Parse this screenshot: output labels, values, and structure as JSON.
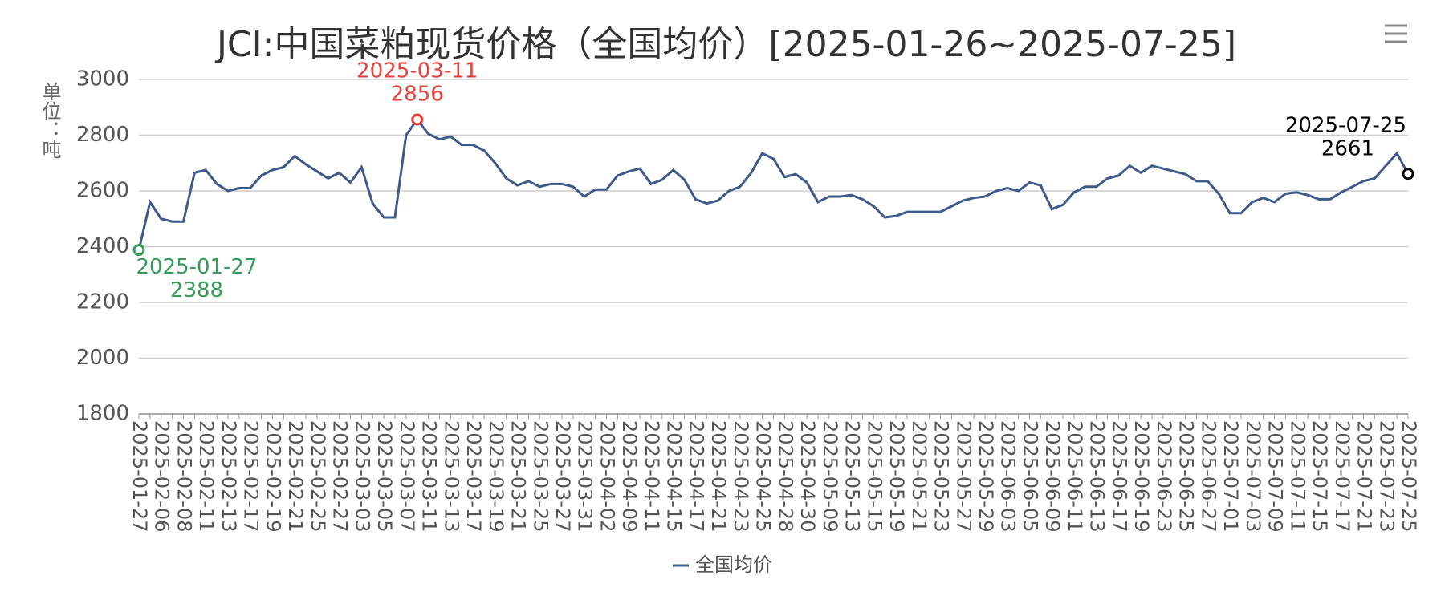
{
  "chart_data": {
    "type": "line",
    "title": "JCI:中国菜粕现货价格（全国均价）[2025-01-26~2025-07-25]",
    "y_label": "单位：吨",
    "categories": [
      "2025-01-27",
      null,
      "2025-02-06",
      null,
      "2025-02-08",
      null,
      "2025-02-11",
      null,
      "2025-02-13",
      null,
      "2025-02-17",
      null,
      "2025-02-19",
      null,
      "2025-02-21",
      null,
      "2025-02-25",
      null,
      "2025-02-27",
      null,
      "2025-03-03",
      null,
      "2025-03-05",
      null,
      "2025-03-07",
      null,
      "2025-03-11",
      null,
      "2025-03-13",
      null,
      "2025-03-17",
      null,
      "2025-03-19",
      null,
      "2025-03-21",
      null,
      "2025-03-25",
      null,
      "2025-03-27",
      null,
      "2025-03-31",
      null,
      "2025-04-02",
      null,
      "2025-04-09",
      null,
      "2025-04-11",
      null,
      "2025-04-15",
      null,
      "2025-04-17",
      null,
      "2025-04-21",
      null,
      "2025-04-23",
      null,
      "2025-04-25",
      null,
      "2025-04-28",
      null,
      "2025-04-30",
      null,
      "2025-05-09",
      null,
      "2025-05-13",
      null,
      "2025-05-15",
      null,
      "2025-05-19",
      null,
      "2025-05-21",
      null,
      "2025-05-23",
      null,
      "2025-05-27",
      null,
      "2025-05-29",
      null,
      "2025-06-03",
      null,
      "2025-06-05",
      null,
      "2025-06-09",
      null,
      "2025-06-11",
      null,
      "2025-06-13",
      null,
      "2025-06-17",
      null,
      "2025-06-19",
      null,
      "2025-06-23",
      null,
      "2025-06-25",
      null,
      "2025-06-27",
      null,
      "2025-07-01",
      null,
      "2025-07-03",
      null,
      "2025-07-09",
      null,
      "2025-07-11",
      null,
      "2025-07-15",
      null,
      "2025-07-17",
      null,
      "2025-07-21",
      null,
      "2025-07-23",
      null,
      "2025-07-25"
    ],
    "series": [
      {
        "name": "全国均价",
        "color": "#3e5a8a",
        "values": [
          2388,
          2560,
          2500,
          2490,
          2490,
          2665,
          2675,
          2625,
          2600,
          2610,
          2610,
          2655,
          2675,
          2685,
          2725,
          2695,
          2670,
          2645,
          2665,
          2630,
          2685,
          2555,
          2505,
          2505,
          2800,
          2856,
          2805,
          2785,
          2795,
          2765,
          2765,
          2745,
          2700,
          2645,
          2620,
          2635,
          2615,
          2625,
          2625,
          2615,
          2580,
          2605,
          2605,
          2655,
          2670,
          2680,
          2625,
          2640,
          2675,
          2640,
          2570,
          2555,
          2565,
          2600,
          2615,
          2665,
          2735,
          2715,
          2650,
          2660,
          2630,
          2560,
          2580,
          2580,
          2585,
          2570,
          2545,
          2505,
          2510,
          2525,
          2525,
          2525,
          2525,
          2545,
          2565,
          2575,
          2580,
          2600,
          2610,
          2600,
          2630,
          2620,
          2535,
          2550,
          2595,
          2615,
          2615,
          2645,
          2655,
          2690,
          2665,
          2690,
          2680,
          2670,
          2660,
          2635,
          2635,
          2590,
          2520,
          2520,
          2560,
          2575,
          2560,
          2590,
          2595,
          2585,
          2570,
          2570,
          2595,
          2615,
          2635,
          2645,
          2690,
          2735,
          2661
        ]
      }
    ],
    "annotations": [
      {
        "label": "2025-01-27",
        "value": 2388,
        "color": "#3a9a5a"
      },
      {
        "label": "2025-03-11",
        "value": 2856,
        "color": "#e8413b"
      },
      {
        "label": "2025-07-25",
        "value": 2661,
        "color": "#000000"
      }
    ],
    "ylim": [
      1800,
      3000
    ],
    "yticks": [
      1800,
      2000,
      2200,
      2400,
      2600,
      2800,
      3000
    ],
    "grid": true
  }
}
